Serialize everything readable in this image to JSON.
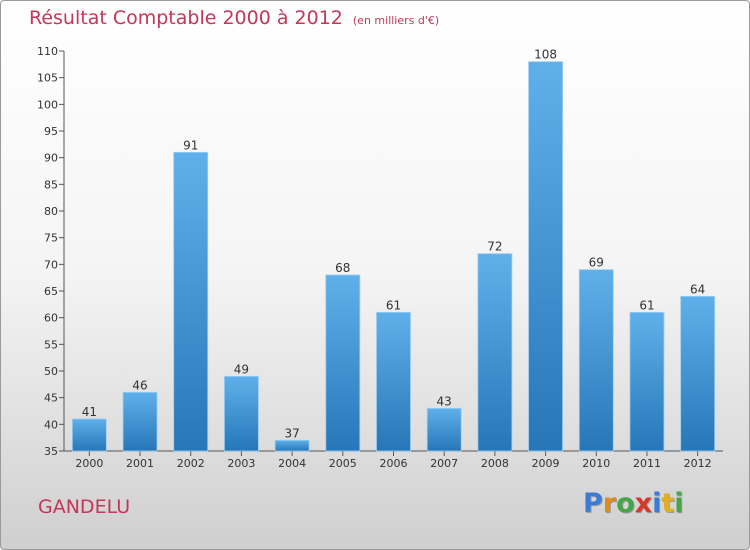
{
  "title": "Résultat Comptable 2000 à 2012",
  "unit": "(en milliers d'€)",
  "town": "GANDELU",
  "brand": {
    "letters": [
      "P",
      "r",
      "o",
      "x",
      "i",
      "t",
      "i"
    ],
    "colors": [
      "#3a7bd5",
      "#e08a1e",
      "#47a447",
      "#d9362b",
      "#3a7bd5",
      "#e0b020",
      "#47a447"
    ]
  },
  "colors": {
    "bar_light": "#5fb0ea",
    "bar_dark": "#2777b8",
    "title": "#c4365a"
  },
  "chart_data": {
    "type": "bar",
    "title": "Résultat Comptable 2000 à 2012",
    "categories": [
      "2000",
      "2001",
      "2002",
      "2003",
      "2004",
      "2005",
      "2006",
      "2007",
      "2008",
      "2009",
      "2010",
      "2011",
      "2012"
    ],
    "values": [
      41,
      46,
      91,
      49,
      37,
      68,
      61,
      43,
      72,
      108,
      69,
      61,
      64
    ],
    "ylim": [
      35,
      110
    ],
    "yticks": [
      35,
      40,
      45,
      50,
      55,
      60,
      65,
      70,
      75,
      80,
      85,
      90,
      95,
      100,
      105,
      110
    ],
    "grid": false,
    "legend": "none"
  }
}
